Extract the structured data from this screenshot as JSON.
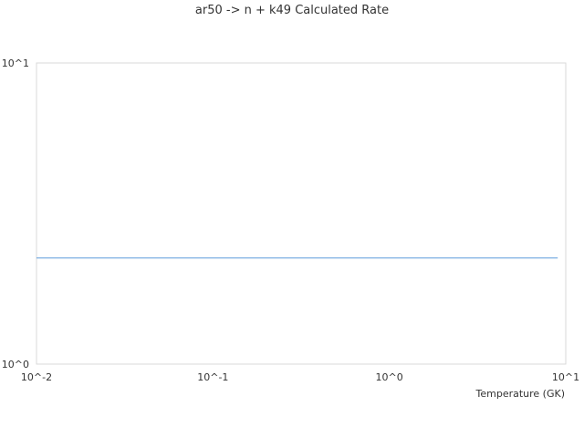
{
  "chart_data": {
    "type": "line",
    "title": "ar50 -> n + k49 Calculated Rate",
    "xlabel": "Temperature (GK)",
    "ylabel": "",
    "xscale": "log",
    "yscale": "log",
    "xlim": [
      0.01,
      10
    ],
    "ylim": [
      1,
      10
    ],
    "x_ticks": [
      {
        "value": 0.01,
        "label": "10^-2"
      },
      {
        "value": 0.1,
        "label": "10^-1"
      },
      {
        "value": 1,
        "label": "10^0"
      },
      {
        "value": 10,
        "label": "10^1"
      }
    ],
    "y_ticks": [
      {
        "value": 1,
        "label": "10^0"
      },
      {
        "value": 10,
        "label": "10^1"
      }
    ],
    "grid": false,
    "series": [
      {
        "color": "#5b9bdc",
        "x": [
          0.01,
          9.0
        ],
        "y": [
          2.25,
          2.25
        ]
      }
    ]
  }
}
